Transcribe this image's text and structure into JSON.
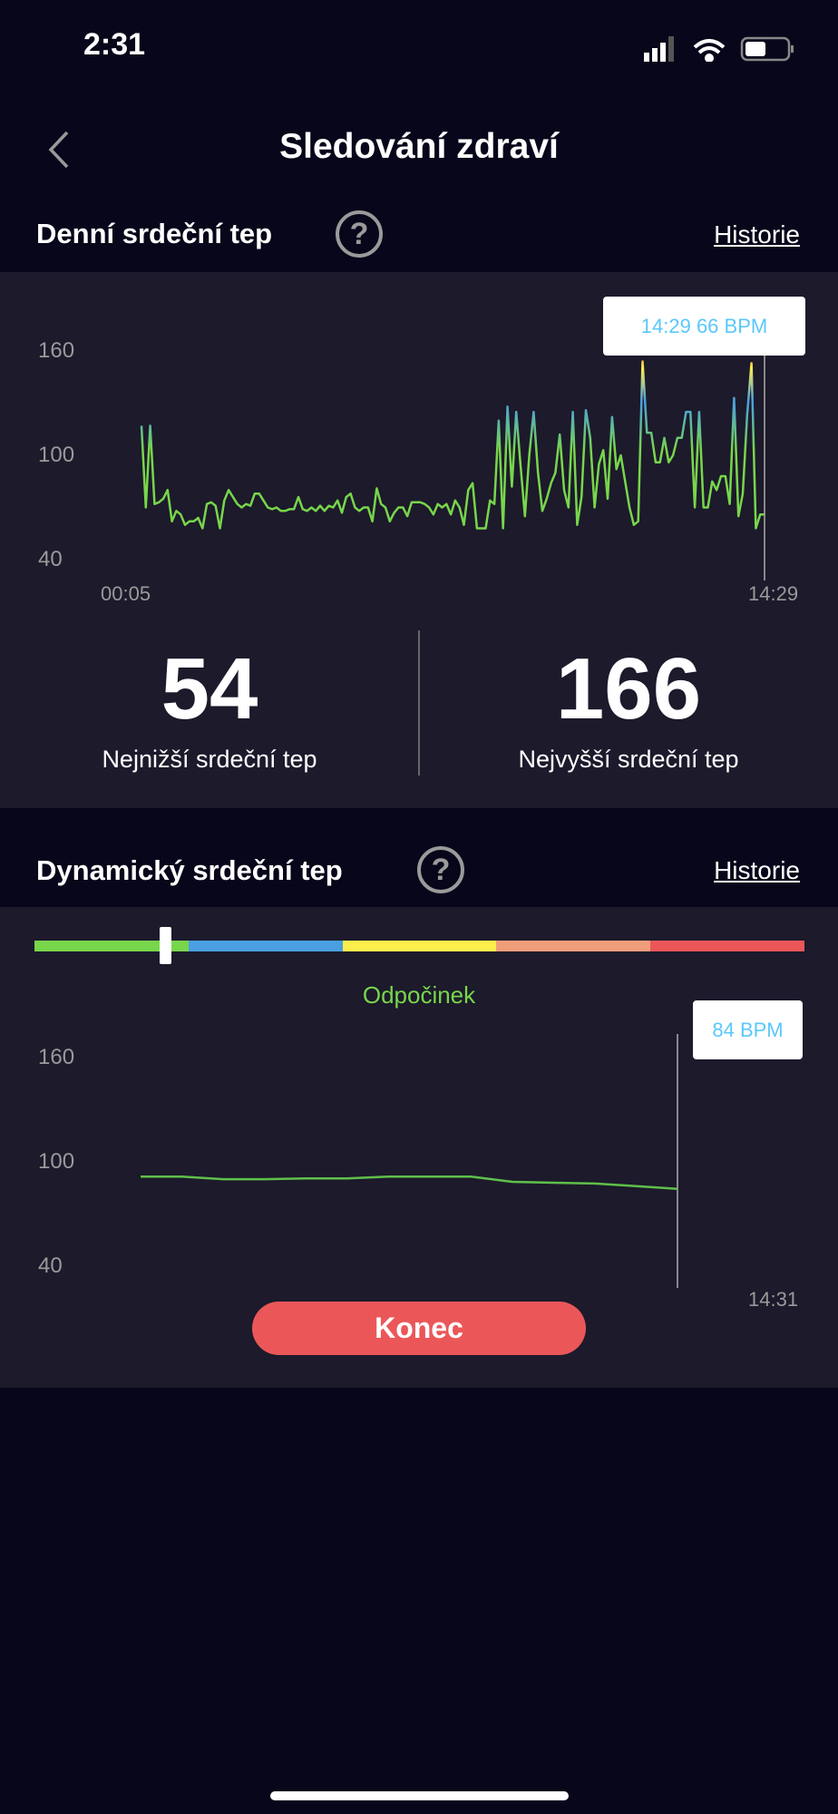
{
  "status_bar": {
    "time": "2:31",
    "icons": [
      "signal-icon",
      "wifi-icon",
      "battery-icon"
    ]
  },
  "nav": {
    "title": "Sledování zdraví",
    "back_icon": "chevron-left-icon"
  },
  "daily": {
    "title": "Denní srdeční tep",
    "help_icon": "question-icon",
    "history_label": "Historie",
    "tooltip": "14:29  66 BPM",
    "min_value": "54",
    "min_label": "Nejnižší srdeční tep",
    "max_value": "166",
    "max_label": "Nejvyšší srdeční tep"
  },
  "dynamic": {
    "title": "Dynamický srdeční tep",
    "help_icon": "question-icon",
    "history_label": "Historie",
    "zone_label": "Odpočinek",
    "zone_level": 0.17,
    "zone_colors": [
      "#78d64b",
      "#4a9fe0",
      "#fcee4b",
      "#f09e7a",
      "#eb5759"
    ],
    "tooltip": "84 BPM",
    "button_label": "Konec"
  },
  "chart_data": [
    {
      "type": "line",
      "xticks": [
        "00:05",
        "14:29"
      ],
      "yticks": [
        "160",
        "100",
        "40"
      ],
      "ylim": [
        40,
        160
      ],
      "values": [
        117,
        70,
        117,
        72,
        73,
        75,
        80,
        62,
        68,
        66,
        60,
        62,
        62,
        64,
        58,
        72,
        73,
        71,
        58,
        74,
        80,
        76,
        72,
        70,
        72,
        71,
        78,
        78,
        74,
        70,
        69,
        70,
        68,
        68,
        69,
        69,
        76,
        69,
        68,
        70,
        68,
        71,
        68,
        71,
        70,
        74,
        67,
        76,
        78,
        70,
        68,
        70,
        70,
        62,
        81,
        72,
        70,
        62,
        67,
        70,
        70,
        65,
        73,
        73,
        73,
        72,
        70,
        66,
        72,
        70,
        72,
        66,
        74,
        70,
        60,
        80,
        84,
        58,
        58,
        58,
        74,
        72,
        120,
        58,
        128,
        82,
        125,
        94,
        65,
        100,
        125,
        90,
        68,
        75,
        84,
        90,
        112,
        80,
        70,
        125,
        60,
        76,
        126,
        110,
        70,
        95,
        103,
        75,
        122,
        92,
        100,
        85,
        70,
        60,
        62,
        154,
        113,
        113,
        96,
        96,
        110,
        96,
        100,
        110,
        110,
        125,
        125,
        70,
        125,
        70,
        70,
        85,
        80,
        88,
        88,
        72,
        133,
        65,
        78,
        123,
        153,
        58,
        66,
        66
      ]
    },
    {
      "type": "line",
      "xticks": [
        "14:31"
      ],
      "yticks": [
        "160",
        "100",
        "40"
      ],
      "ylim": [
        40,
        160
      ],
      "color": "#5fc04a",
      "values": [
        91,
        91,
        89.5,
        89.5,
        90,
        90,
        91,
        91,
        91,
        88,
        87.5,
        87,
        85.5,
        84
      ]
    }
  ]
}
